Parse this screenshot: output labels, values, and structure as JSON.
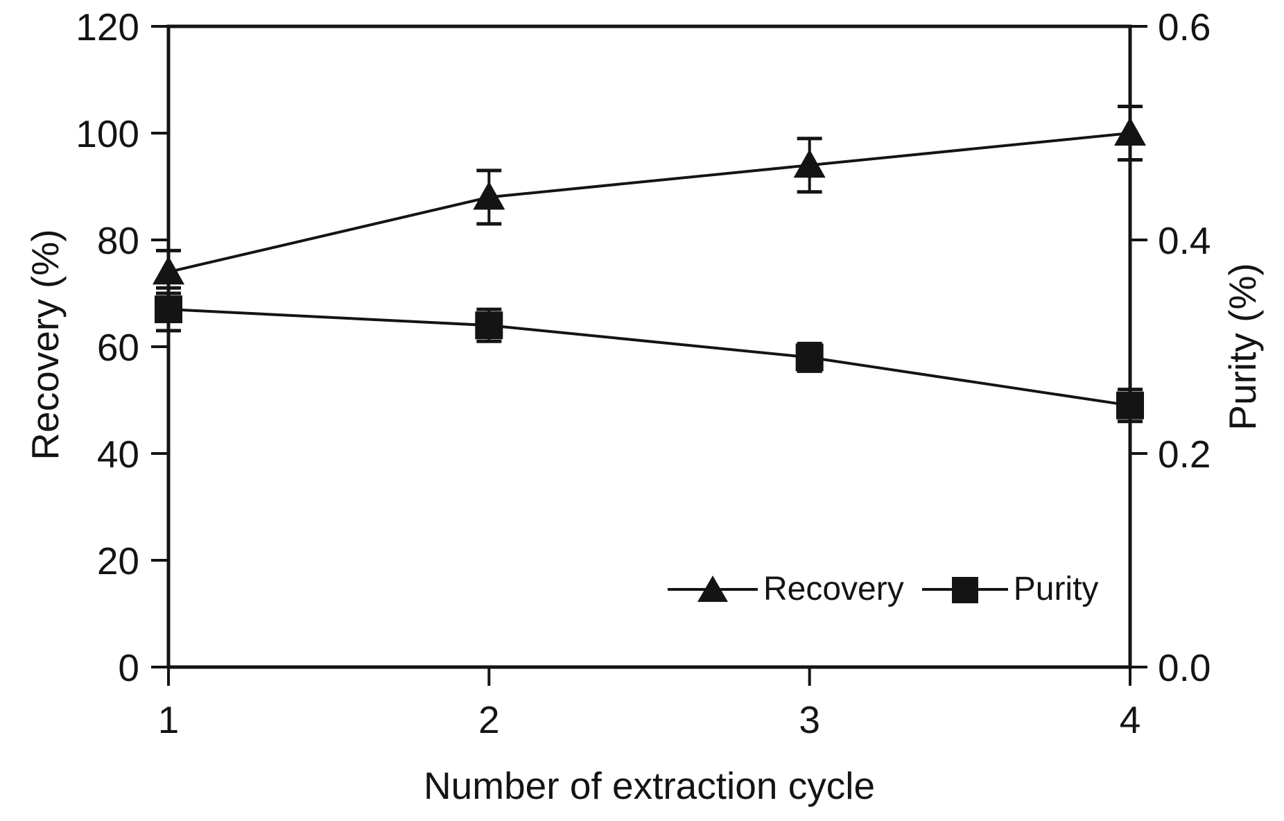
{
  "figure": {
    "background": "#ffffff",
    "ink": "#141414"
  },
  "chart_data": {
    "type": "line",
    "x": [
      1,
      2,
      3,
      4
    ],
    "xticks": [
      "1",
      "2",
      "3",
      "4"
    ],
    "xlabel": "Number of extraction cycle",
    "left_axis": {
      "label": "Recovery (%)",
      "lim": [
        0,
        120
      ],
      "ticks": [
        "0",
        "20",
        "40",
        "60",
        "80",
        "100",
        "120"
      ]
    },
    "right_axis": {
      "label": "Purity (%)",
      "lim": [
        0.0,
        0.6
      ],
      "ticks": [
        "0.0",
        "0.2",
        "0.4",
        "0.6"
      ]
    },
    "series": [
      {
        "name": "Recovery",
        "axis": "left",
        "marker": "triangle",
        "values": [
          74,
          88,
          94,
          100
        ],
        "errors": [
          4,
          5,
          5,
          5
        ]
      },
      {
        "name": "Purity",
        "axis": "right",
        "marker": "square",
        "values": [
          0.335,
          0.32,
          0.29,
          0.245
        ],
        "errors": [
          0.02,
          0.015,
          0.013,
          0.015
        ]
      }
    ],
    "legend": {
      "position": "inside-bottom-right",
      "items": [
        {
          "label": "Recovery",
          "marker": "triangle"
        },
        {
          "label": "Purity",
          "marker": "square"
        }
      ]
    },
    "grid": false
  }
}
